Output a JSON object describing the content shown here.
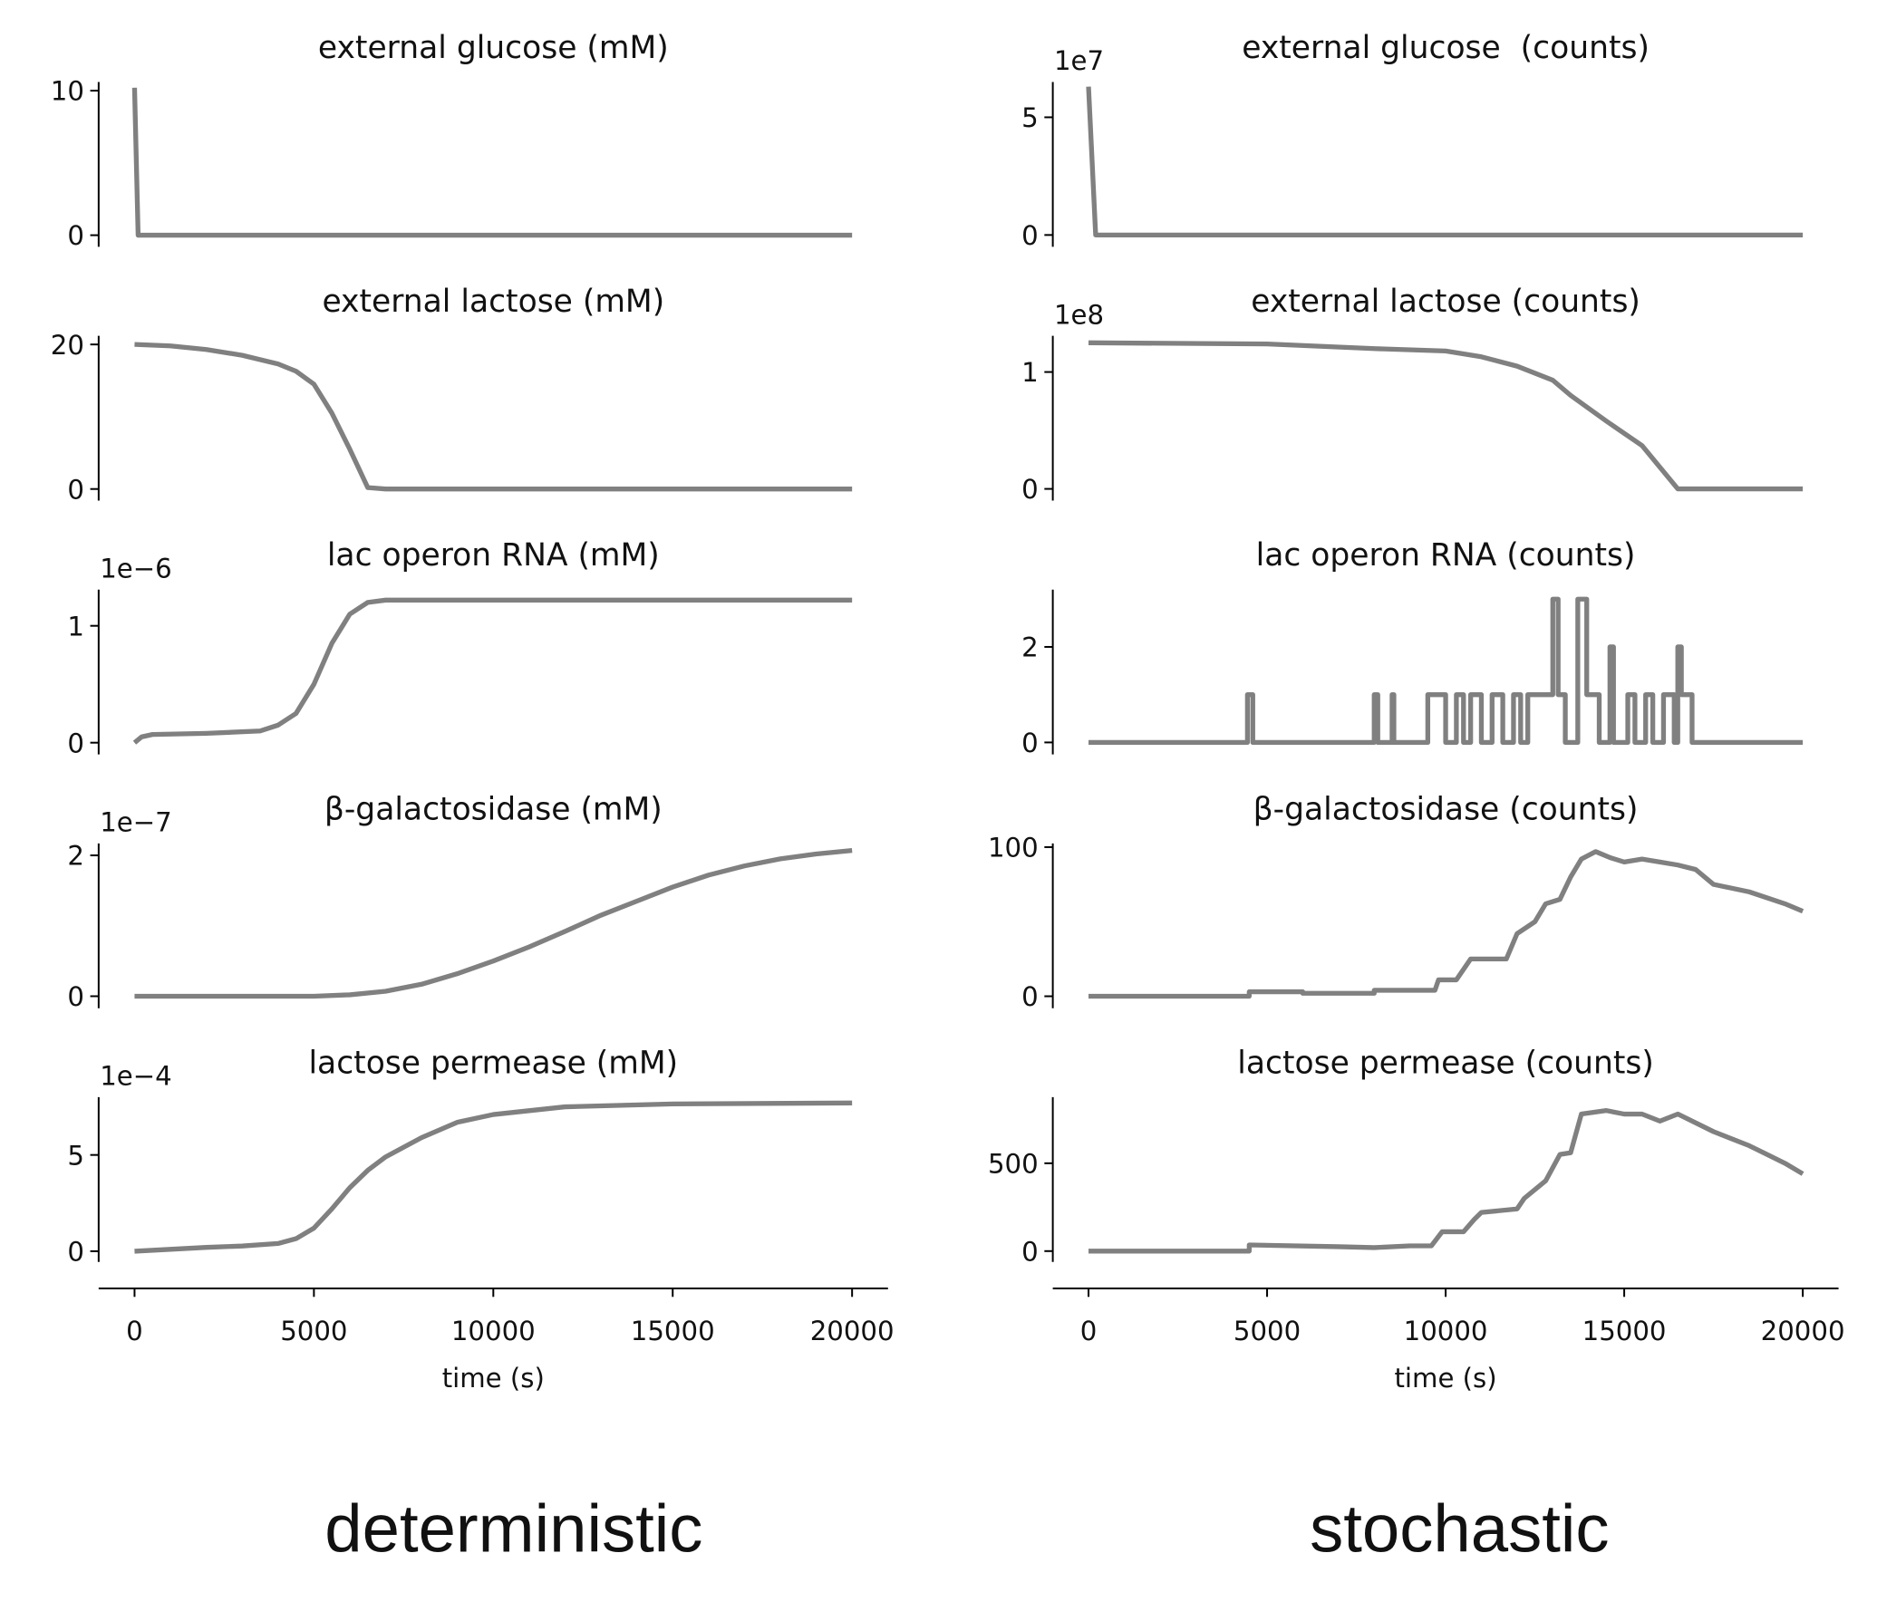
{
  "chart_data": [
    {
      "type": "line",
      "title": "external glucose (mM)",
      "color": "#808080",
      "x": [
        0,
        100,
        20000
      ],
      "values": [
        10.2,
        0,
        0
      ],
      "xlim": [
        -1000,
        21000
      ],
      "ylim": [
        -0.8,
        10.6
      ],
      "yticks": [
        0,
        10
      ]
    },
    {
      "type": "line",
      "title": "external lactose (mM)",
      "color": "#808080",
      "x": [
        0,
        1000,
        2000,
        3000,
        4000,
        4500,
        5000,
        5500,
        6000,
        6500,
        7000,
        20000
      ],
      "values": [
        20,
        19.8,
        19.3,
        18.5,
        17.3,
        16.3,
        14.5,
        10.5,
        5.5,
        0.2,
        0,
        0
      ],
      "xlim": [
        -1000,
        21000
      ],
      "ylim": [
        -1.6,
        21.2
      ],
      "yticks": [
        0,
        20
      ]
    },
    {
      "type": "line",
      "title": "lac operon RNA (mM)",
      "offset_text": "1e−6",
      "color": "#808080",
      "x": [
        0,
        200,
        500,
        2000,
        3500,
        4000,
        4500,
        5000,
        5500,
        6000,
        6500,
        7000,
        20000
      ],
      "values": [
        0,
        0.05,
        0.07,
        0.08,
        0.1,
        0.15,
        0.25,
        0.5,
        0.85,
        1.1,
        1.2,
        1.22,
        1.22
      ],
      "xlim": [
        -1000,
        21000
      ],
      "ylim": [
        -0.1,
        1.31
      ],
      "yticks": [
        0,
        1
      ]
    },
    {
      "type": "line",
      "title": "β-galactosidase (mM)",
      "offset_text": "1e−7",
      "color": "#808080",
      "x": [
        0,
        5000,
        6000,
        7000,
        8000,
        9000,
        10000,
        11000,
        12000,
        13000,
        14000,
        15000,
        16000,
        17000,
        18000,
        19000,
        20000
      ],
      "values": [
        0,
        0,
        0.02,
        0.07,
        0.17,
        0.32,
        0.5,
        0.7,
        0.92,
        1.15,
        1.35,
        1.55,
        1.72,
        1.85,
        1.95,
        2.02,
        2.07
      ],
      "xlim": [
        -1000,
        21000
      ],
      "ylim": [
        -0.17,
        2.17
      ],
      "yticks": [
        0,
        2
      ]
    },
    {
      "type": "line",
      "title": "lactose permease (mM)",
      "offset_text": "1e−4",
      "color": "#808080",
      "x": [
        0,
        1000,
        2000,
        3000,
        4000,
        4500,
        5000,
        5500,
        6000,
        6500,
        7000,
        8000,
        9000,
        10000,
        12000,
        15000,
        20000
      ],
      "values": [
        0,
        0.1,
        0.2,
        0.27,
        0.4,
        0.65,
        1.2,
        2.2,
        3.3,
        4.2,
        4.9,
        5.9,
        6.7,
        7.1,
        7.5,
        7.65,
        7.7
      ],
      "xlim": [
        -1000,
        21000
      ],
      "ylim": [
        -0.56,
        8
      ],
      "yticks": [
        0,
        5
      ],
      "xticks": [
        0,
        5000,
        10000,
        15000,
        20000
      ],
      "xlabel": "time (s)"
    },
    {
      "type": "line",
      "title": "external glucose  (counts)",
      "offset_text": "1e7",
      "color": "#808080",
      "x": [
        0,
        200,
        20000
      ],
      "values": [
        6.3,
        0,
        0
      ],
      "xlim": [
        -1000,
        21000
      ],
      "ylim": [
        -0.5,
        6.5
      ],
      "yticks": [
        0,
        5
      ]
    },
    {
      "type": "line",
      "title": "external lactose (counts)",
      "offset_text": "1e8",
      "color": "#808080",
      "x": [
        0,
        5000,
        8000,
        10000,
        11000,
        12000,
        13000,
        13500,
        14500,
        15500,
        16500,
        20000
      ],
      "values": [
        1.25,
        1.24,
        1.2,
        1.18,
        1.13,
        1.05,
        0.93,
        0.8,
        0.58,
        0.37,
        0,
        0
      ],
      "xlim": [
        -1000,
        21000
      ],
      "ylim": [
        -0.1,
        1.31
      ],
      "yticks": [
        0,
        1
      ]
    },
    {
      "type": "line",
      "title": "lac operon RNA (counts)",
      "color": "#808080",
      "x": [
        0,
        4450,
        4450,
        4600,
        4600,
        8000,
        8000,
        8100,
        8100,
        8500,
        8500,
        8550,
        8550,
        9500,
        9500,
        10000,
        10000,
        10300,
        10300,
        10500,
        10500,
        10700,
        10700,
        11000,
        11000,
        11300,
        11300,
        11600,
        11600,
        11900,
        11900,
        12100,
        12100,
        12300,
        12300,
        13000,
        13000,
        13150,
        13150,
        13350,
        13350,
        13700,
        13700,
        13950,
        13950,
        14300,
        14300,
        14600,
        14600,
        14700,
        14700,
        15100,
        15100,
        15300,
        15300,
        15600,
        15600,
        15800,
        15800,
        16100,
        16100,
        16400,
        16400,
        16500,
        16500,
        16600,
        16600,
        16900,
        16900,
        20000
      ],
      "values": [
        0,
        0,
        1,
        1,
        0,
        0,
        1,
        1,
        0,
        0,
        1,
        1,
        0,
        0,
        1,
        1,
        0,
        0,
        1,
        1,
        0,
        0,
        1,
        1,
        0,
        0,
        1,
        1,
        0,
        0,
        1,
        1,
        0,
        0,
        1,
        1,
        3,
        3,
        1,
        1,
        0,
        0,
        3,
        3,
        1,
        1,
        0,
        0,
        2,
        2,
        0,
        0,
        1,
        1,
        0,
        0,
        1,
        1,
        0,
        0,
        1,
        1,
        0,
        0,
        2,
        2,
        1,
        1,
        0,
        0
      ],
      "xlim": [
        -1000,
        21000
      ],
      "ylim": [
        -0.25,
        3.2
      ],
      "yticks": [
        0,
        2
      ]
    },
    {
      "type": "line",
      "title": "β-galactosidase (counts)",
      "color": "#808080",
      "x": [
        0,
        4500,
        4500,
        6000,
        6000,
        8000,
        8000,
        9700,
        9800,
        10300,
        10700,
        11200,
        11700,
        12000,
        12500,
        12800,
        13200,
        13500,
        13800,
        14200,
        14600,
        15000,
        15500,
        16000,
        16500,
        17000,
        17500,
        18500,
        19500,
        20000
      ],
      "values": [
        0,
        0,
        3,
        3,
        2,
        2,
        4,
        4,
        11,
        11,
        25,
        25,
        25,
        42,
        50,
        62,
        65,
        80,
        92,
        97,
        93,
        90,
        92,
        90,
        88,
        85,
        75,
        70,
        62,
        57
      ],
      "xlim": [
        -1000,
        21000
      ],
      "ylim": [
        -8,
        102.5
      ],
      "yticks": [
        0,
        100
      ]
    },
    {
      "type": "line",
      "title": "lactose permease (counts)",
      "color": "#808080",
      "x": [
        0,
        4500,
        4500,
        7000,
        8000,
        9000,
        9600,
        9900,
        10500,
        10800,
        11000,
        12000,
        12200,
        12800,
        13200,
        13500,
        13800,
        14500,
        15000,
        15500,
        16000,
        16500,
        17500,
        18500,
        19500,
        20000
      ],
      "values": [
        0,
        0,
        35,
        25,
        20,
        30,
        30,
        110,
        110,
        180,
        220,
        240,
        300,
        400,
        550,
        560,
        780,
        800,
        780,
        780,
        740,
        780,
        680,
        600,
        500,
        440
      ],
      "xlim": [
        -1000,
        21000
      ],
      "ylim": [
        -62,
        876
      ],
      "yticks": [
        0,
        500
      ],
      "xticks": [
        0,
        5000,
        10000,
        15000,
        20000
      ],
      "xlabel": "time (s)"
    }
  ],
  "column_labels": [
    "deterministic",
    "stochastic"
  ]
}
